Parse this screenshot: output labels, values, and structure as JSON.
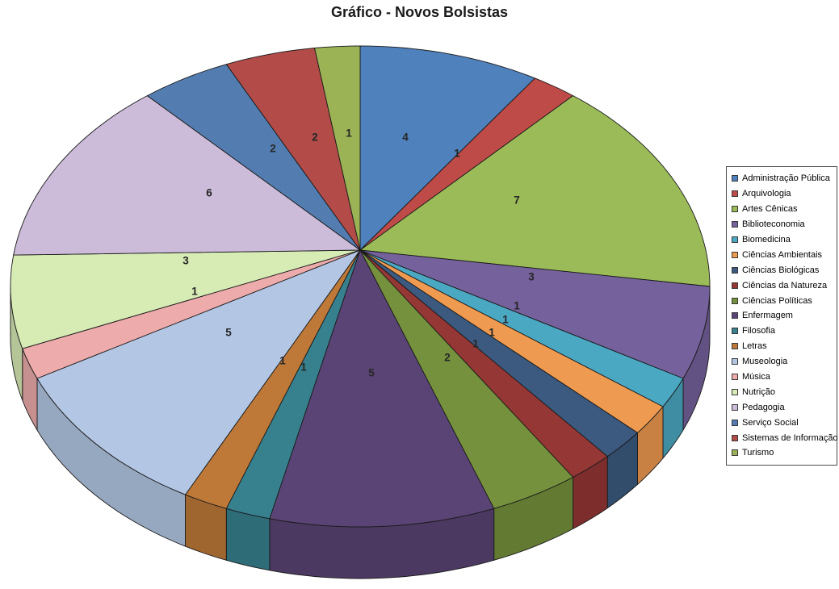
{
  "title": "Gráfico - Novos Bolsistas",
  "chart_data": {
    "type": "pie",
    "title": "Gráfico - Novos Bolsistas",
    "style": "3d-pie",
    "legend_position": "right",
    "data_labels": "values",
    "label_color": "#262626",
    "series": [
      {
        "label": "Administração Pública",
        "value": 4,
        "color": "#4F81BD"
      },
      {
        "label": "Arquivologia",
        "value": 1,
        "color": "#BE4B48"
      },
      {
        "label": "Artes Cênicas",
        "value": 7,
        "color": "#9BBB59"
      },
      {
        "label": "Biblioteconomia",
        "value": 3,
        "color": "#75619C"
      },
      {
        "label": "Biomedicina",
        "value": 1,
        "color": "#4BA8C2"
      },
      {
        "label": "Ciências Ambientais",
        "value": 1,
        "color": "#EE9A50"
      },
      {
        "label": "Ciências Biológicas",
        "value": 1,
        "color": "#3C5A80"
      },
      {
        "label": "Ciências da Natureza",
        "value": 1,
        "color": "#953734"
      },
      {
        "label": "Ciências Políticas",
        "value": 2,
        "color": "#76913D"
      },
      {
        "label": "Enfermagem",
        "value": 5,
        "color": "#5A4475"
      },
      {
        "label": "Filosofia",
        "value": 1,
        "color": "#37818F"
      },
      {
        "label": "Letras",
        "value": 1,
        "color": "#BE7939"
      },
      {
        "label": "Museologia",
        "value": 5,
        "color": "#B3C7E5"
      },
      {
        "label": "Música",
        "value": 1,
        "color": "#EDABAB"
      },
      {
        "label": "Nutrição",
        "value": 3,
        "color": "#D7EBB5"
      },
      {
        "label": "Pedagogia",
        "value": 6,
        "color": "#CCBBD9"
      },
      {
        "label": "Serviço Social",
        "value": 2,
        "color": "#537DB0"
      },
      {
        "label": "Sistemas de Informação",
        "value": 2,
        "color": "#B34C49"
      },
      {
        "label": "Turismo",
        "value": 1,
        "color": "#9BB255"
      }
    ]
  }
}
